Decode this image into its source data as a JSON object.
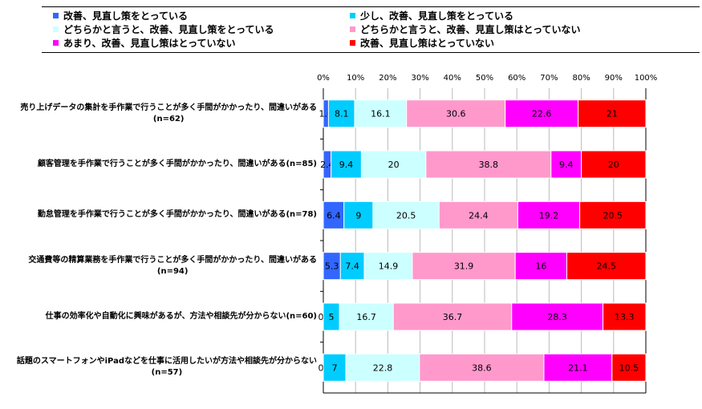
{
  "chart_data": {
    "type": "bar",
    "stacked": true,
    "orientation": "horizontal",
    "xlim": [
      0,
      100
    ],
    "x_ticks": [
      "0%",
      "10%",
      "20%",
      "30%",
      "40%",
      "50%",
      "60%",
      "70%",
      "80%",
      "90%",
      "100%"
    ],
    "legend_position": "top",
    "categories": [
      {
        "label": "売り上げデータの集計を手作業で行うことが多く手間がかかったり、間違いがある",
        "n": "(n=62)"
      },
      {
        "label": "顧客管理を手作業で行うことが多く手間がかかったり、間違いがある(n=85)",
        "n": ""
      },
      {
        "label": "勤怠管理を手作業で行うことが多く手間がかかったり、間違いがある(n=78)",
        "n": ""
      },
      {
        "label": "交通費等の精算業務を手作業で行うことが多く手間がかかったり、間違いがある",
        "n": "(n=94)"
      },
      {
        "label": "仕事の効率化や自動化に興味があるが、方法や相談先が分からない(n=60)",
        "n": ""
      },
      {
        "label": "話題のスマートフォンやiPadなどを仕事に活用したいが方法や相談先が分からない",
        "n": "(n=57)"
      }
    ],
    "series": [
      {
        "name": "改善、見直し策をとっている",
        "color": "#3366ff",
        "values": [
          1.6,
          2.4,
          6.4,
          5.3,
          0,
          0
        ]
      },
      {
        "name": "少し、改善、見直し策をとっている",
        "color": "#00ccff",
        "values": [
          8.1,
          9.4,
          9,
          7.4,
          5,
          7
        ]
      },
      {
        "name": "どちらかと言うと、改善、見直し策をとっている",
        "color": "#ccffff",
        "values": [
          16.1,
          20,
          20.5,
          14.9,
          16.7,
          22.8
        ]
      },
      {
        "name": "どちらかと言うと、改善、見直し策はとっていない",
        "color": "#ff99cc",
        "values": [
          30.6,
          38.8,
          24.4,
          31.9,
          36.7,
          38.6
        ]
      },
      {
        "name": "あまり、改善、見直し策はとっていない",
        "color": "#ff00ff",
        "values": [
          22.6,
          9.4,
          19.2,
          16,
          28.3,
          21.1
        ]
      },
      {
        "name": "改善、見直し策はとっていない",
        "color": "#ff0000",
        "values": [
          21,
          20,
          20.5,
          24.5,
          13.3,
          10.5
        ]
      }
    ]
  }
}
